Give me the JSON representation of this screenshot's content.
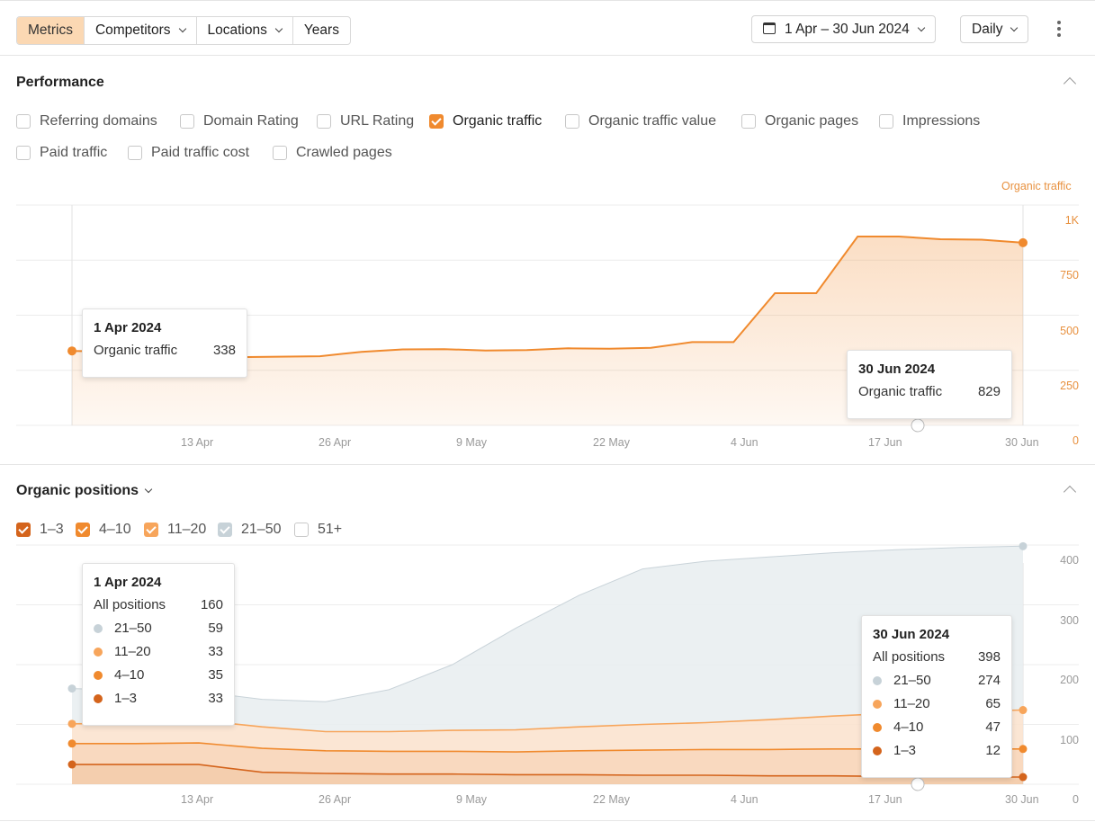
{
  "toolbar": {
    "segments": [
      "Metrics",
      "Competitors",
      "Locations",
      "Years"
    ],
    "date_range": "1 Apr – 30 Jun 2024",
    "granularity": "Daily"
  },
  "performance": {
    "title": "Performance",
    "metrics": [
      {
        "label": "Referring domains",
        "checked": false
      },
      {
        "label": "Domain Rating",
        "checked": false
      },
      {
        "label": "URL Rating",
        "checked": false
      },
      {
        "label": "Organic traffic",
        "checked": true
      },
      {
        "label": "Organic traffic value",
        "checked": false
      },
      {
        "label": "Organic pages",
        "checked": false
      },
      {
        "label": "Impressions",
        "checked": false
      },
      {
        "label": "Paid traffic",
        "checked": false
      },
      {
        "label": "Paid traffic cost",
        "checked": false
      },
      {
        "label": "Crawled pages",
        "checked": false
      }
    ],
    "axis_title": "Organic traffic",
    "tip_start": {
      "date": "1 Apr 2024",
      "label": "Organic traffic",
      "value": "338"
    },
    "tip_end": {
      "date": "30 Jun 2024",
      "label": "Organic traffic",
      "value": "829"
    }
  },
  "positions": {
    "title": "Organic positions",
    "ranges": [
      {
        "label": "1–3",
        "checked": true,
        "color": "#d4641c"
      },
      {
        "label": "4–10",
        "checked": true,
        "color": "#f08a2e"
      },
      {
        "label": "11–20",
        "checked": true,
        "color": "#f7a55b"
      },
      {
        "label": "21–50",
        "checked": true,
        "color": "#c7d2d8"
      },
      {
        "label": "51+",
        "checked": false,
        "color": "#cccccc"
      }
    ],
    "tip_start": {
      "date": "1 Apr 2024",
      "total_label": "All positions",
      "total": "160",
      "rows": [
        {
          "label": "21–50",
          "value": "59"
        },
        {
          "label": "11–20",
          "value": "33"
        },
        {
          "label": "4–10",
          "value": "35"
        },
        {
          "label": "1–3",
          "value": "33"
        }
      ]
    },
    "tip_end": {
      "date": "30 Jun 2024",
      "total_label": "All positions",
      "total": "398",
      "rows": [
        {
          "label": "21–50",
          "value": "274"
        },
        {
          "label": "11–20",
          "value": "65"
        },
        {
          "label": "4–10",
          "value": "47"
        },
        {
          "label": "1–3",
          "value": "12"
        }
      ]
    }
  },
  "chart_data": [
    {
      "type": "area",
      "title": "Organic traffic",
      "x": [
        "1 Apr",
        "5 Apr",
        "10 Apr",
        "14 Apr",
        "18 Apr",
        "24 Apr",
        "28 Apr",
        "30 Apr",
        "4 May",
        "8 May",
        "14 May",
        "18 May",
        "24 May",
        "28 May",
        "2 Jun",
        "8 Jun",
        "11 Jun",
        "12 Jun",
        "15 Jun",
        "17 Jun",
        "18 Jun",
        "20 Jun",
        "24 Jun",
        "30 Jun"
      ],
      "values": [
        338,
        335,
        330,
        305,
        310,
        312,
        314,
        334,
        345,
        346,
        340,
        342,
        350,
        348,
        352,
        378,
        378,
        600,
        600,
        857,
        857,
        845,
        843,
        829
      ],
      "xticks": [
        "13 Apr",
        "26 Apr",
        "9 May",
        "22 May",
        "4 Jun",
        "17 Jun",
        "30 Jun"
      ],
      "yticks": [
        "0",
        "250",
        "500",
        "750",
        "1K"
      ],
      "ylim": [
        0,
        1000
      ],
      "color": "#f08a2e"
    },
    {
      "type": "area",
      "title": "Organic positions",
      "x": [
        "1 Apr",
        "8 Apr",
        "14 Apr",
        "20 Apr",
        "28 Apr",
        "4 May",
        "12 May",
        "18 May",
        "24 May",
        "30 May",
        "5 Jun",
        "10 Jun",
        "15 Jun",
        "20 Jun",
        "25 Jun",
        "30 Jun"
      ],
      "series": [
        {
          "name": "1–3",
          "values": [
            33,
            33,
            33,
            20,
            18,
            17,
            17,
            16,
            16,
            15,
            15,
            14,
            14,
            13,
            12,
            12
          ]
        },
        {
          "name": "4–10",
          "values": [
            35,
            35,
            36,
            40,
            38,
            38,
            38,
            38,
            40,
            42,
            43,
            44,
            45,
            46,
            47,
            47
          ]
        },
        {
          "name": "11–20",
          "values": [
            33,
            34,
            38,
            36,
            32,
            33,
            35,
            37,
            40,
            43,
            45,
            50,
            55,
            60,
            63,
            65
          ]
        },
        {
          "name": "21–50",
          "values": [
            59,
            55,
            48,
            46,
            50,
            70,
            110,
            170,
            220,
            260,
            270,
            272,
            273,
            273,
            274,
            274
          ]
        }
      ],
      "xticks": [
        "13 Apr",
        "26 Apr",
        "9 May",
        "22 May",
        "4 Jun",
        "17 Jun",
        "30 Jun"
      ],
      "yticks": [
        "0",
        "100",
        "200",
        "300",
        "400"
      ],
      "ylim": [
        0,
        400
      ]
    }
  ]
}
